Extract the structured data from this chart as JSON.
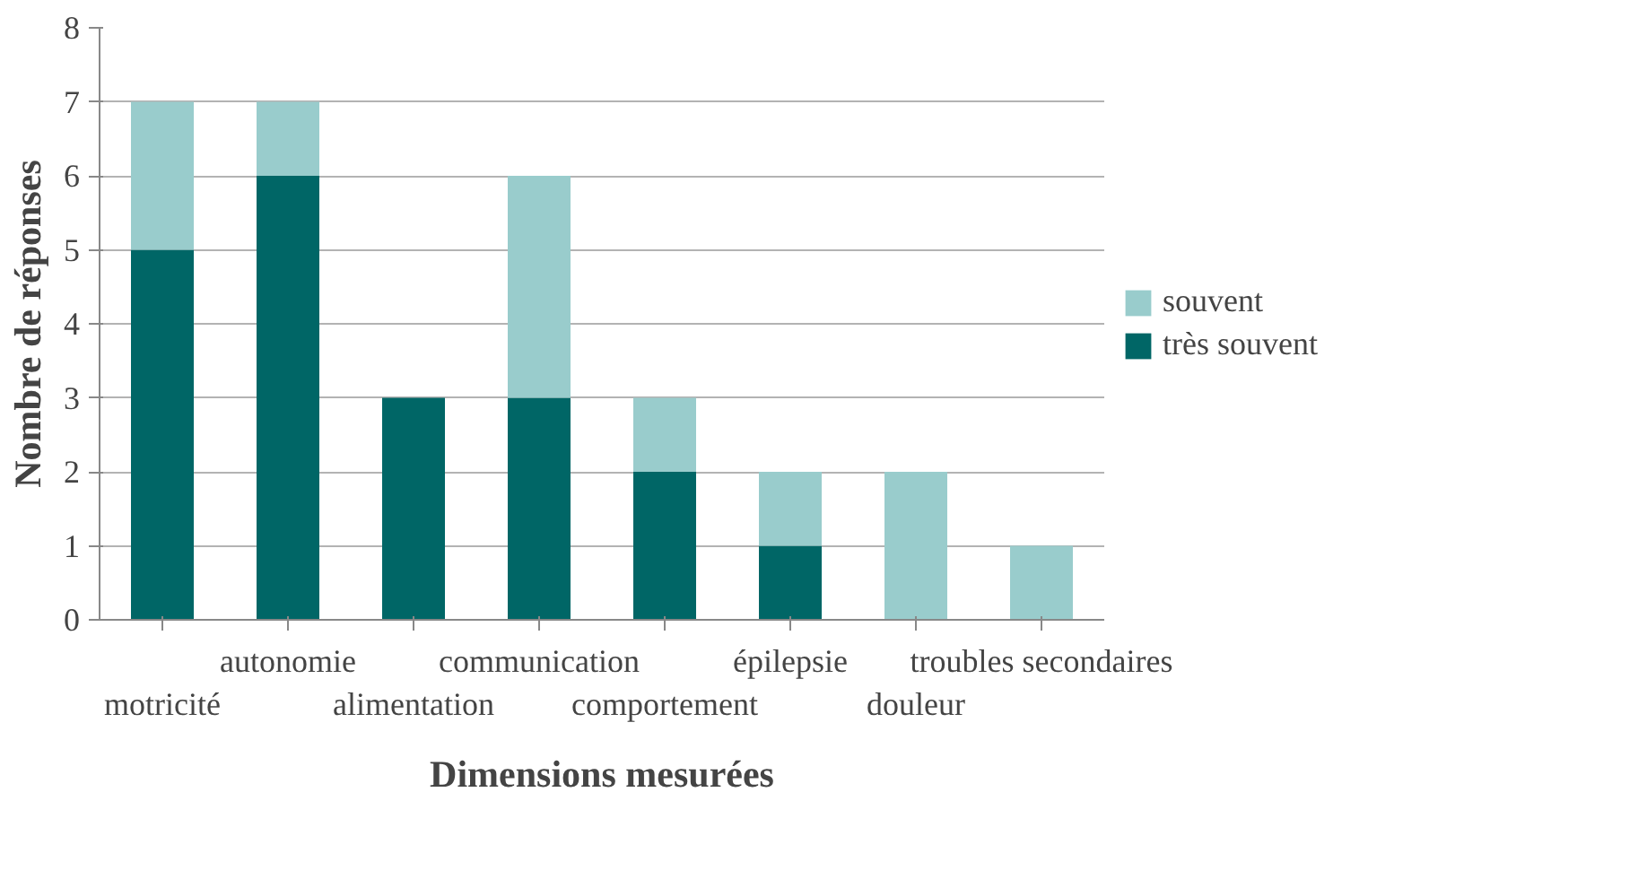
{
  "chart_data": {
    "type": "bar",
    "stacked": true,
    "xlabel": "Dimensions mesurées",
    "ylabel": "Nombre de réponses",
    "categories": [
      "motricité",
      "autonomie",
      "alimentation",
      "communication",
      "comportement",
      "épilepsie",
      "douleur",
      "troubles secondaires"
    ],
    "series": [
      {
        "name": "très souvent",
        "color": "#006666",
        "values": [
          5,
          6,
          3,
          3,
          2,
          1,
          0,
          0
        ]
      },
      {
        "name": "souvent",
        "color": "#99cccc",
        "values": [
          2,
          1,
          0,
          3,
          1,
          1,
          2,
          1
        ]
      }
    ],
    "ylim": [
      0,
      8
    ],
    "yticks": [
      0,
      1,
      2,
      3,
      4,
      5,
      6,
      7,
      8
    ],
    "grid": "y",
    "legend": "right"
  }
}
